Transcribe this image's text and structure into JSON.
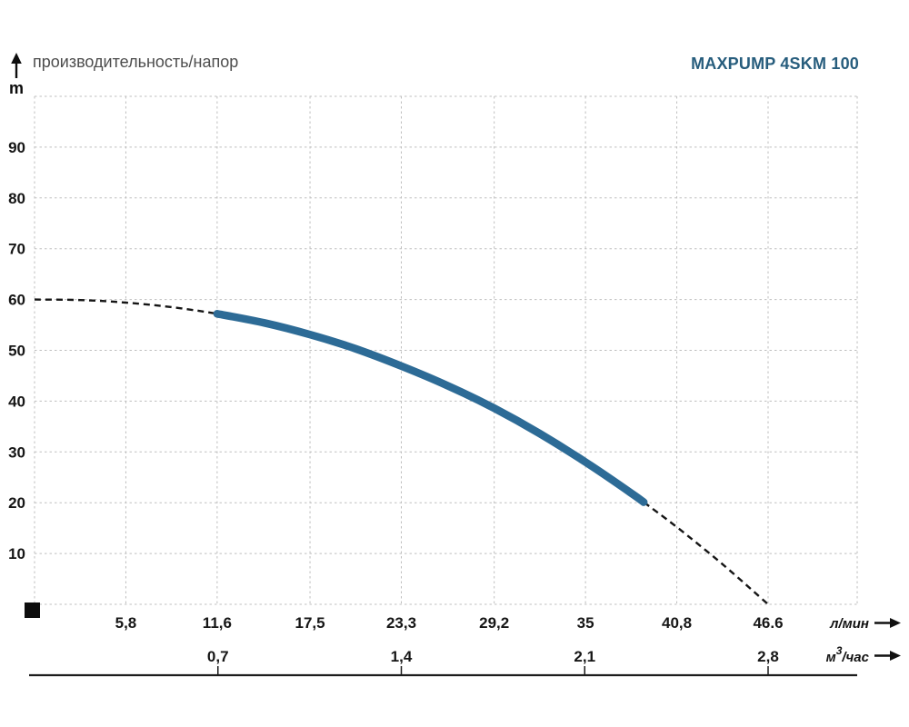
{
  "header": {
    "title": "производительность/напор",
    "model": "MAXPUMP 4SKM 100"
  },
  "colors": {
    "curve_solid": "#2d6b96",
    "curve_dashed": "#151515",
    "grid": "#bfbfbf",
    "title_text": "#4d4d4d",
    "model_text": "#275d7d"
  },
  "chart_data": {
    "type": "line",
    "title": "производительность/напор",
    "subtitle": "MAXPUMP 4SKM 100",
    "ylabel": "m",
    "ylim": [
      0,
      100
    ],
    "xlim_lmin": [
      0,
      52.26
    ],
    "grid": true,
    "legend": "none",
    "y_ticks": [
      10,
      20,
      30,
      40,
      50,
      60,
      70,
      80,
      90
    ],
    "x_axis_flow_lmin": {
      "unit_label": "л/мин",
      "tick_labels": [
        "5,8",
        "11,6",
        "17,5",
        "23,3",
        "29,2",
        "35",
        "40,8",
        "46.6"
      ],
      "tick_values": [
        5.8,
        11.6,
        17.5,
        23.3,
        29.2,
        35,
        40.8,
        46.6
      ]
    },
    "x_axis_flow_m3h": {
      "unit_base": "м",
      "unit_sup": "3",
      "unit_rest": "/час",
      "tick_labels": [
        "0,7",
        "1,4",
        "2,1",
        "2,8"
      ],
      "tick_values_lmin": [
        11.65,
        23.3,
        34.95,
        46.6
      ]
    },
    "curve": {
      "name": "pump head curve H(Q), solid = working range, dashed = extrapolated",
      "points_q_h": [
        [
          0,
          60.0
        ],
        [
          2.9,
          59.9
        ],
        [
          5.8,
          59.4
        ],
        [
          8.7,
          58.5
        ],
        [
          11.6,
          57.2
        ],
        [
          14.6,
          55.4
        ],
        [
          17.5,
          53.1
        ],
        [
          20.4,
          50.3
        ],
        [
          23.3,
          46.9
        ],
        [
          26.2,
          43.1
        ],
        [
          29.2,
          38.6
        ],
        [
          32.1,
          33.6
        ],
        [
          35,
          28.0
        ],
        [
          37.9,
          21.9
        ],
        [
          38.7,
          20.1
        ],
        [
          40.8,
          15.2
        ],
        [
          43.7,
          7.9
        ],
        [
          46.6,
          0.0
        ]
      ],
      "solid_range_q": [
        11.6,
        38.7
      ]
    }
  }
}
